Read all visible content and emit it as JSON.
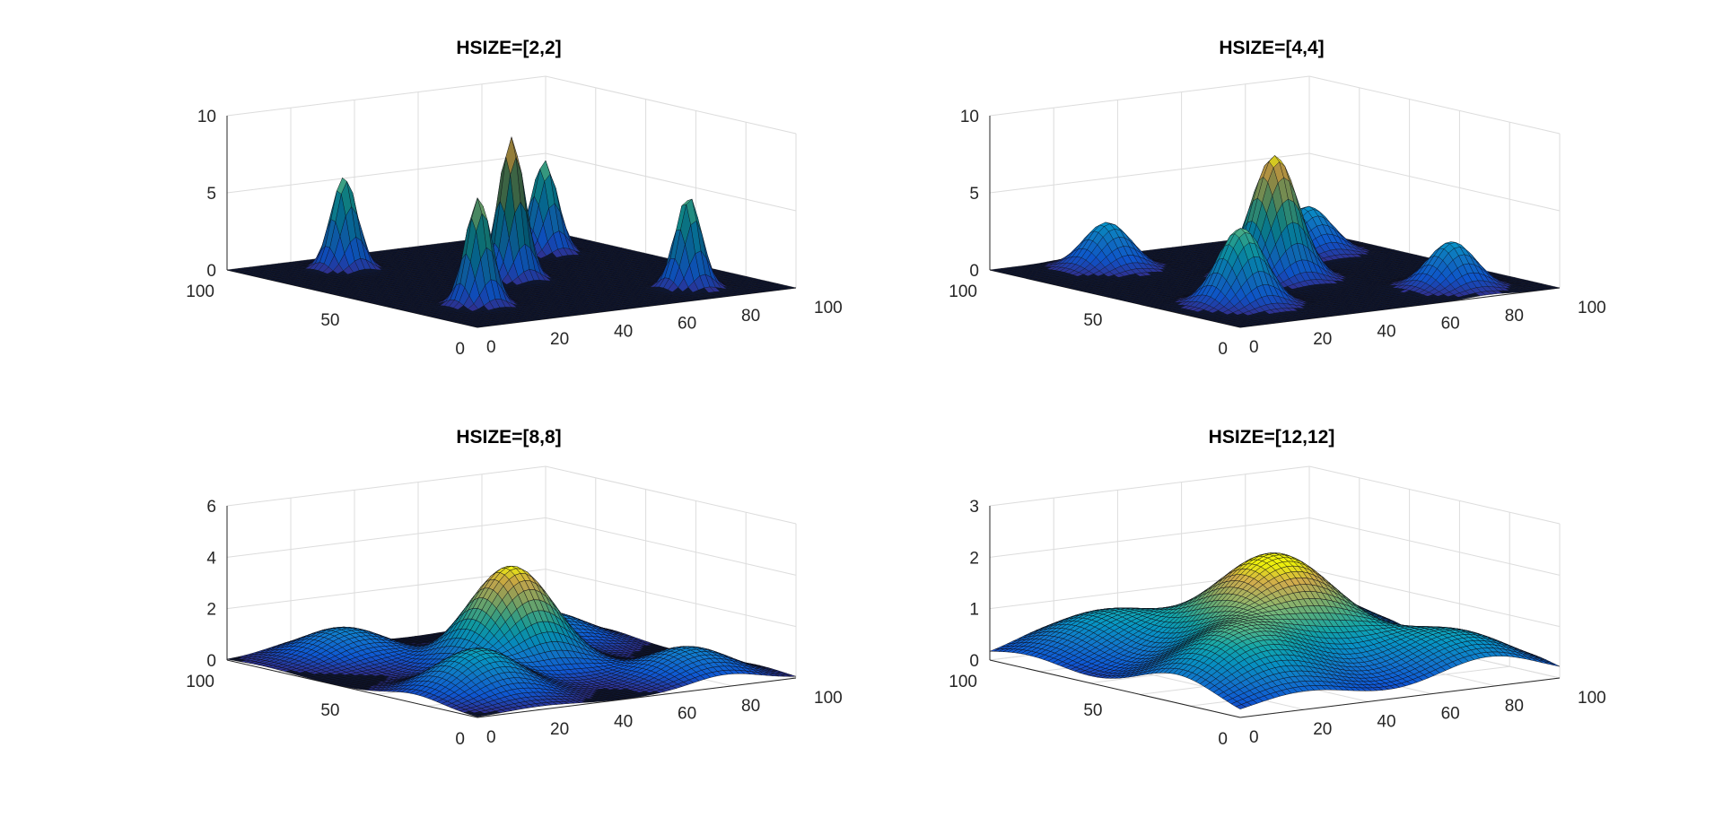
{
  "chart_data": [
    {
      "type": "surface",
      "title": "HSIZE=[2,2]",
      "xlim": [
        0,
        100
      ],
      "ylim": [
        0,
        100
      ],
      "zlim": [
        0,
        10
      ],
      "x_ticks": [
        "0",
        "20",
        "40",
        "60",
        "80",
        "100"
      ],
      "y_ticks": [
        "0",
        "50",
        "100"
      ],
      "z_ticks": [
        "0",
        "5",
        "10"
      ],
      "grid": true,
      "colormap": "parula",
      "peaks": [
        {
          "x": 50,
          "y": 50,
          "height": 9.2
        },
        {
          "x": 20,
          "y": 25,
          "height": 7.0
        },
        {
          "x": 80,
          "y": 75,
          "height": 6.0
        },
        {
          "x": 25,
          "y": 85,
          "height": 6.0
        },
        {
          "x": 78,
          "y": 15,
          "height": 6.0
        }
      ]
    },
    {
      "type": "surface",
      "title": "HSIZE=[4,4]",
      "xlim": [
        0,
        100
      ],
      "ylim": [
        0,
        100
      ],
      "zlim": [
        0,
        10
      ],
      "x_ticks": [
        "0",
        "20",
        "40",
        "60",
        "80",
        "100"
      ],
      "y_ticks": [
        "0",
        "50",
        "100"
      ],
      "z_ticks": [
        "0",
        "5",
        "10"
      ],
      "grid": true,
      "colormap": "parula",
      "peaks": [
        {
          "x": 50,
          "y": 50,
          "height": 8.0
        },
        {
          "x": 20,
          "y": 25,
          "height": 5.0
        },
        {
          "x": 80,
          "y": 75,
          "height": 3.0
        },
        {
          "x": 25,
          "y": 85,
          "height": 3.0
        },
        {
          "x": 78,
          "y": 15,
          "height": 3.0
        }
      ]
    },
    {
      "type": "surface",
      "title": "HSIZE=[8,8]",
      "xlim": [
        0,
        100
      ],
      "ylim": [
        0,
        100
      ],
      "zlim": [
        0,
        6
      ],
      "x_ticks": [
        "0",
        "20",
        "40",
        "60",
        "80",
        "100"
      ],
      "y_ticks": [
        "0",
        "50",
        "100"
      ],
      "z_ticks": [
        "0",
        "2",
        "4",
        "6"
      ],
      "grid": true,
      "colormap": "parula",
      "peaks": [
        {
          "x": 50,
          "y": 50,
          "height": 4.0
        },
        {
          "x": 20,
          "y": 25,
          "height": 1.8
        },
        {
          "x": 80,
          "y": 75,
          "height": 1.2
        },
        {
          "x": 25,
          "y": 85,
          "height": 1.2
        },
        {
          "x": 78,
          "y": 15,
          "height": 1.2
        }
      ]
    },
    {
      "type": "surface",
      "title": "HSIZE=[12,12]",
      "xlim": [
        0,
        100
      ],
      "ylim": [
        0,
        100
      ],
      "zlim": [
        0,
        3
      ],
      "x_ticks": [
        "0",
        "20",
        "40",
        "60",
        "80",
        "100"
      ],
      "y_ticks": [
        "0",
        "50",
        "100"
      ],
      "z_ticks": [
        "0",
        "1",
        "2",
        "3"
      ],
      "grid": true,
      "colormap": "parula",
      "peaks": [
        {
          "x": 50,
          "y": 50,
          "height": 2.1
        },
        {
          "x": 20,
          "y": 25,
          "height": 1.2
        },
        {
          "x": 80,
          "y": 75,
          "height": 0.9
        },
        {
          "x": 25,
          "y": 85,
          "height": 0.9
        },
        {
          "x": 78,
          "y": 15,
          "height": 0.9
        }
      ]
    }
  ]
}
